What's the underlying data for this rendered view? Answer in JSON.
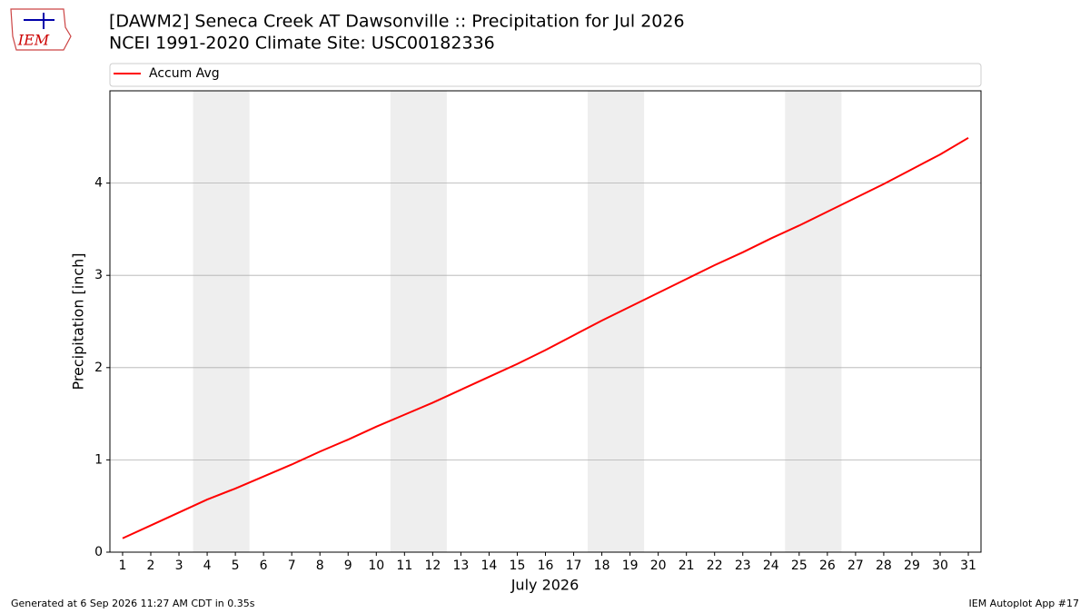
{
  "logo_text": "IEM",
  "chart_data": {
    "type": "line",
    "title": "[DAWM2] Seneca Creek  AT Dawsonville :: Precipitation for Jul 2026",
    "subtitle": "NCEI 1991-2020 Climate Site: USC00182336",
    "ylabel": "Precipitation [inch]",
    "xlabel": "July 2026",
    "x": [
      1,
      2,
      3,
      4,
      5,
      6,
      7,
      8,
      9,
      10,
      11,
      12,
      13,
      14,
      15,
      16,
      17,
      18,
      19,
      20,
      21,
      22,
      23,
      24,
      25,
      26,
      27,
      28,
      29,
      30,
      31
    ],
    "series": [
      {
        "name": "Accum Avg",
        "color": "#ff0000",
        "values": [
          0.15,
          0.29,
          0.43,
          0.57,
          0.69,
          0.82,
          0.95,
          1.09,
          1.22,
          1.36,
          1.49,
          1.62,
          1.76,
          1.9,
          2.04,
          2.19,
          2.35,
          2.51,
          2.66,
          2.81,
          2.96,
          3.11,
          3.25,
          3.4,
          3.54,
          3.69,
          3.84,
          3.99,
          4.15,
          4.31,
          4.49
        ]
      }
    ],
    "xlim": [
      0.55,
      31.45
    ],
    "ylim": [
      0,
      5
    ],
    "xticks": [
      1,
      2,
      3,
      4,
      5,
      6,
      7,
      8,
      9,
      10,
      11,
      12,
      13,
      14,
      15,
      16,
      17,
      18,
      19,
      20,
      21,
      22,
      23,
      24,
      25,
      26,
      27,
      28,
      29,
      30,
      31
    ],
    "yticks": [
      0,
      1,
      2,
      3,
      4
    ],
    "grid": true,
    "legend": "top",
    "shaded_ranges": [
      [
        3.5,
        5.5
      ],
      [
        10.5,
        12.5
      ],
      [
        17.5,
        19.5
      ],
      [
        24.5,
        26.5
      ]
    ],
    "shade_color": "#eeeeee"
  },
  "footer": {
    "left": "Generated at 6 Sep 2026 11:27 AM CDT in 0.35s",
    "right": "IEM Autoplot App #17"
  }
}
